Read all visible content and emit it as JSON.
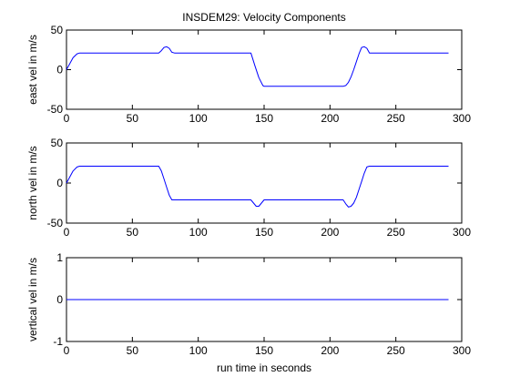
{
  "figure": {
    "title": "INSDEM29:  Velocity Components",
    "xlabel": "run time in seconds"
  },
  "chart_data": [
    {
      "type": "line",
      "ylabel": "east vel in m/s",
      "xlim": [
        0,
        300
      ],
      "ylim": [
        -50,
        50
      ],
      "xticks": [
        0,
        50,
        100,
        150,
        200,
        250,
        300
      ],
      "yticks": [
        -50,
        0,
        50
      ],
      "grid": false,
      "color": "#0000ff",
      "series": [
        {
          "x": [
            0,
            2,
            5,
            8,
            10,
            70,
            72,
            74,
            76,
            78,
            80,
            82,
            140,
            143,
            146,
            149,
            150,
            210,
            212,
            214,
            216,
            218,
            220,
            222,
            224,
            226,
            228,
            230,
            290
          ],
          "y": [
            0,
            6,
            15,
            20,
            21,
            21,
            24,
            28,
            29,
            27,
            22,
            21,
            21,
            5,
            -10,
            -20,
            -21,
            -21,
            -20,
            -16,
            -9,
            0,
            10,
            20,
            28,
            29,
            27,
            21,
            21
          ]
        }
      ]
    },
    {
      "type": "line",
      "ylabel": "north vel in m/s",
      "xlim": [
        0,
        300
      ],
      "ylim": [
        -50,
        50
      ],
      "xticks": [
        0,
        50,
        100,
        150,
        200,
        250,
        300
      ],
      "yticks": [
        -50,
        0,
        50
      ],
      "grid": false,
      "color": "#0000ff",
      "series": [
        {
          "x": [
            0,
            2,
            5,
            8,
            10,
            70,
            72,
            74,
            76,
            78,
            80,
            140,
            142,
            144,
            146,
            148,
            150,
            210,
            212,
            214,
            216,
            218,
            220,
            222,
            224,
            226,
            228,
            230,
            290
          ],
          "y": [
            0,
            6,
            15,
            20,
            21,
            21,
            15,
            5,
            -5,
            -15,
            -21,
            -21,
            -25,
            -29,
            -29,
            -25,
            -21,
            -21,
            -26,
            -30,
            -29,
            -25,
            -18,
            -8,
            2,
            12,
            20,
            21,
            21
          ]
        }
      ]
    },
    {
      "type": "line",
      "ylabel": "vertical vel in m/s",
      "xlim": [
        0,
        300
      ],
      "ylim": [
        -1,
        1
      ],
      "xticks": [
        0,
        50,
        100,
        150,
        200,
        250,
        300
      ],
      "yticks": [
        -1,
        0,
        1
      ],
      "grid": false,
      "color": "#0000ff",
      "series": [
        {
          "x": [
            0,
            290
          ],
          "y": [
            0,
            0
          ]
        }
      ]
    }
  ]
}
